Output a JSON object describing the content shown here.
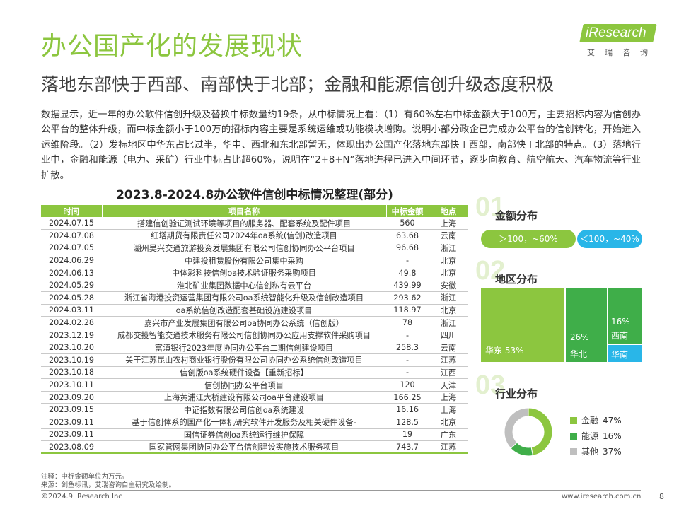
{
  "header": {
    "title": "办公国产化的发展现状",
    "subtitle": "落地东部快于西部、南部快于北部；金融和能源信创升级态度积极",
    "logo_text": "iResearch",
    "logo_cn": "艾瑞咨询"
  },
  "paragraph": "数据显示，近一年的办公软件信创升级及替换中标数量约19条，从中标情况上看：（1）有60%左右中标金额大于100万，主要招标内容为信创办公平台的整体升级，而中标金额小于100万的招标内容主要是系统运维或功能模块增购。说明小部分政企已完成办公平台的信创转化，开始进入运维阶段。（2）发标地区中华东占比过半，华中、西北和东北部暂无，体现出办公国产化落地东部快于西部，南部快于北部的特点。（3）落地行业中，金融和能源（电力、采矿）行业中标占比超60%，说明在“2+8+N”落地进程已进入中间环节，逐步向教育、航空航天、汽车物流等行业扩散。",
  "table": {
    "title": "2023.8-2024.8办公软件信创中标情况整理(部分)",
    "headers": [
      "时间",
      "项目名称",
      "中标金额",
      "地点"
    ],
    "rows": [
      [
        "2024.07.15",
        "搭建信创验证测试环境等项目的服务器、配套系统及配件项目",
        "560",
        "上海"
      ],
      [
        "2024.07.08",
        "红塔期货有限责任公司2024年oa系统(信创)改造项目",
        "63.68",
        "云南"
      ],
      [
        "2024.07.05",
        "湖州吴兴交通旅游投资发展集团有限公司信创协同办公平台项目",
        "96.68",
        "浙江"
      ],
      [
        "2024.06.29",
        "中建投租赁股份有限公司集中采购",
        "-",
        "北京"
      ],
      [
        "2024.06.13",
        "中体彩科技信创oa技术验证服务采购项目",
        "49.8",
        "北京"
      ],
      [
        "2024.05.29",
        "淮北矿业集团数据中心信创私有云平台",
        "439.99",
        "安徽"
      ],
      [
        "2024.05.28",
        "浙江省海港投资运营集团有限公司oa系统智能化升级及信创改造项目",
        "293.62",
        "浙江"
      ],
      [
        "2024.03.11",
        "oa系统信创改造配套基础设施建设项目",
        "118.97",
        "北京"
      ],
      [
        "2024.02.28",
        "嘉兴市产业发展集团有限公司oa协同办公系统（信创版）",
        "78",
        "浙江"
      ],
      [
        "2023.12.19",
        "成都交投智能交通技术服务有限公司信创协同办公应用支撑软件采购项目",
        "-",
        "四川"
      ],
      [
        "2023.10.20",
        "富滇银行2023年度协同办公平台二期信创建设项目",
        "258.3",
        "云南"
      ],
      [
        "2023.10.19",
        "关于江苏昆山农村商业银行股份有限公司协同办公系统信创改造项目",
        "-",
        "江苏"
      ],
      [
        "2023.10.18",
        "信创版oa系统硬件设备【重新招标】",
        "-",
        "江西"
      ],
      [
        "2023.10.11",
        "信创协同办公平台项目",
        "120",
        "天津"
      ],
      [
        "2023.09.20",
        "上海黄浦江大桥建设有限公司oa平台建设项目",
        "166.25",
        "上海"
      ],
      [
        "2023.09.15",
        "中证指数有限公司信创oa系统建设",
        "16.16",
        "上海"
      ],
      [
        "2023.09.11",
        "基于信创体系的国产化一体机研究软件开发服务及相关硬件设备-",
        "128.5",
        "北京"
      ],
      [
        "2023.09.11",
        "国信证券信创oa系统运行维护保障",
        "19",
        "广东"
      ],
      [
        "2023.08.09",
        "国家管网集团协同办公平台信创建设实施技术服务项目",
        "743.7",
        "江苏"
      ]
    ]
  },
  "panel": {
    "amount": {
      "num": "01",
      "title": "金额分布",
      "pill_a": "＞100，~60%",
      "pill_b": "＜100，~40%"
    },
    "region": {
      "num": "02",
      "title": "地区分布",
      "labels": {
        "east": "华东  53%",
        "north_pct": "26%",
        "north": "华北",
        "west_pct": "16%",
        "west": "西南",
        "south": "华南"
      }
    },
    "industry": {
      "num": "03",
      "title": "行业分布",
      "legend": [
        {
          "label": "金融",
          "pct": "47%",
          "color": "#8cc63f"
        },
        {
          "label": "能源",
          "pct": "16%",
          "color": "#3fae49"
        },
        {
          "label": "其他",
          "pct": "37%",
          "color": "#bfbfbf"
        }
      ]
    }
  },
  "colors": {
    "brand_green": "#8cc63f",
    "dark_green": "#3fae49",
    "cyan": "#29b6e8",
    "grey": "#bfbfbf"
  },
  "notes": {
    "line1": "注释：中标金额单位为万元。",
    "line2": "来源：剑鱼标讯，艾瑞咨询自主研究及绘制。"
  },
  "footer": {
    "left": "©2024.9 iResearch Inc",
    "right": "www.iresearch.com.cn",
    "page": "8"
  }
}
